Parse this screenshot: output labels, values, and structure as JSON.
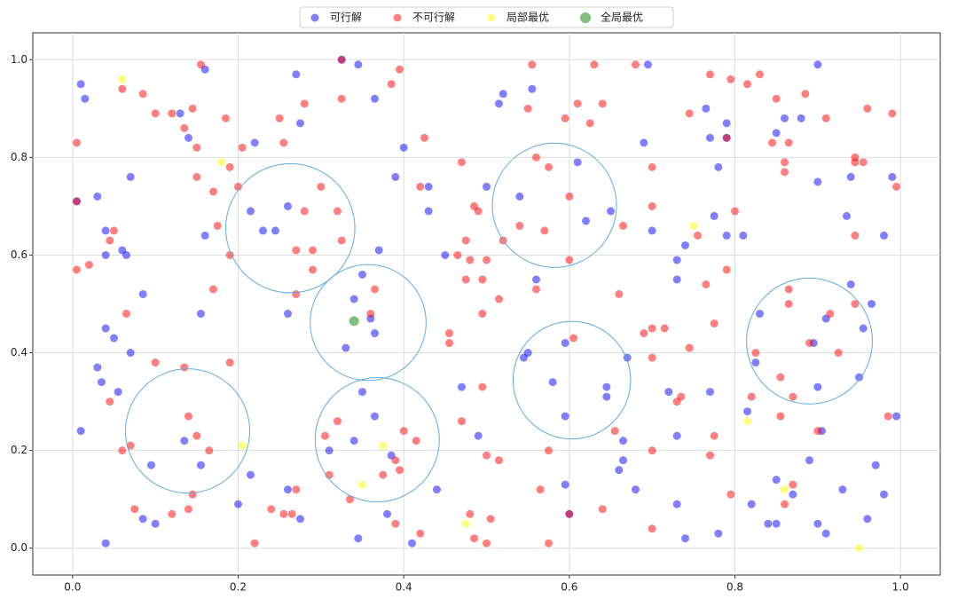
{
  "chart_data": {
    "type": "scatter",
    "xlim": [
      -0.048,
      1.048
    ],
    "ylim": [
      -0.055,
      1.055
    ],
    "xticks": [
      {
        "value": 0,
        "label": "0.0"
      },
      {
        "value": 0.2,
        "label": "0.2"
      },
      {
        "value": 0.4,
        "label": "0.4"
      },
      {
        "value": 0.6,
        "label": "0.6"
      },
      {
        "value": 0.8,
        "label": "0.8"
      },
      {
        "value": 1,
        "label": "1.0"
      }
    ],
    "yticks": [
      {
        "value": 0,
        "label": "0.0"
      },
      {
        "value": 0.2,
        "label": "0.2"
      },
      {
        "value": 0.4,
        "label": "0.4"
      },
      {
        "value": 0.6,
        "label": "0.6"
      },
      {
        "value": 0.8,
        "label": "0.8"
      },
      {
        "value": 1,
        "label": "1.0"
      }
    ],
    "grid": true,
    "legend": "upper center",
    "series": [
      {
        "name": "可行解",
        "color": "#0000ff",
        "x": [
          0.01,
          0.015,
          0.03,
          0.04,
          0.04,
          0.06,
          0.065,
          0.07,
          0.085,
          0.04,
          0.05,
          0.07,
          0.03,
          0.035,
          0.055,
          0.01,
          0.04,
          0.085,
          0.1,
          0.095,
          0.13,
          0.14,
          0.16,
          0.16,
          0.155,
          0.135,
          0.155,
          0.2,
          0.215,
          0.22,
          0.215,
          0.23,
          0.245,
          0.26,
          0.26,
          0.27,
          0.275,
          0.26,
          0.275,
          0.31,
          0.34,
          0.36,
          0.35,
          0.37,
          0.365,
          0.33,
          0.345,
          0.365,
          0.39,
          0.4,
          0.35,
          0.34,
          0.365,
          0.385,
          0.345,
          0.38,
          0.41,
          0.43,
          0.43,
          0.45,
          0.47,
          0.44,
          0.49,
          0.5,
          0.515,
          0.52,
          0.555,
          0.54,
          0.56,
          0.545,
          0.55,
          0.58,
          0.595,
          0.595,
          0.6,
          0.595,
          0.61,
          0.62,
          0.65,
          0.645,
          0.645,
          0.665,
          0.665,
          0.67,
          0.66,
          0.68,
          0.69,
          0.695,
          0.7,
          0.72,
          0.73,
          0.73,
          0.74,
          0.73,
          0.73,
          0.74,
          0.765,
          0.77,
          0.78,
          0.775,
          0.79,
          0.77,
          0.78,
          0.79,
          0.81,
          0.815,
          0.83,
          0.825,
          0.86,
          0.85,
          0.88,
          0.9,
          0.9,
          0.895,
          0.9,
          0.91,
          0.94,
          0.935,
          0.94,
          0.95,
          0.955,
          0.965,
          0.97,
          0.98,
          0.99,
          0.995,
          0.98,
          0.905,
          0.89,
          0.9,
          0.91,
          0.93,
          0.96,
          0.85,
          0.84,
          0.87,
          0.85,
          0.82,
          0.325,
          0.79,
          0.005
        ],
        "y": [
          0.95,
          0.92,
          0.72,
          0.65,
          0.6,
          0.61,
          0.6,
          0.76,
          0.52,
          0.45,
          0.43,
          0.4,
          0.37,
          0.34,
          0.32,
          0.24,
          0.01,
          0.06,
          0.05,
          0.17,
          0.89,
          0.84,
          0.98,
          0.64,
          0.48,
          0.22,
          0.17,
          0.09,
          0.15,
          0.83,
          0.69,
          0.65,
          0.65,
          0.7,
          0.48,
          0.97,
          0.87,
          0.12,
          0.06,
          0.2,
          0.51,
          0.47,
          0.56,
          0.61,
          0.44,
          0.41,
          0.99,
          0.92,
          0.76,
          0.82,
          0.32,
          0.22,
          0.27,
          0.19,
          0.02,
          0.07,
          0.01,
          0.74,
          0.69,
          0.6,
          0.33,
          0.12,
          0.23,
          0.74,
          0.91,
          0.93,
          0.94,
          0.72,
          0.55,
          0.39,
          0.4,
          0.34,
          0.42,
          0.27,
          0.07,
          0.13,
          0.79,
          0.67,
          0.69,
          0.33,
          0.31,
          0.22,
          0.18,
          0.39,
          0.16,
          0.12,
          0.83,
          0.99,
          0.65,
          0.32,
          0.59,
          0.55,
          0.62,
          0.23,
          0.09,
          0.02,
          0.9,
          0.84,
          0.78,
          0.68,
          0.64,
          0.32,
          0.03,
          0.87,
          0.64,
          0.28,
          0.48,
          0.38,
          0.88,
          0.85,
          0.88,
          0.99,
          0.75,
          0.42,
          0.33,
          0.47,
          0.76,
          0.68,
          0.54,
          0.35,
          0.45,
          0.5,
          0.17,
          0.11,
          0.76,
          0.27,
          0.64,
          0.24,
          0.18,
          0.05,
          0.03,
          0.12,
          0.06,
          0.05,
          0.05,
          0.11,
          0.14,
          0.09,
          1.0,
          0.84,
          0.71
        ]
      },
      {
        "name": "不可行解",
        "color": "#ff0000",
        "x": [
          0.005,
          0.005,
          0.02,
          0.045,
          0.05,
          0.06,
          0.085,
          0.1,
          0.12,
          0.135,
          0.145,
          0.15,
          0.15,
          0.155,
          0.17,
          0.175,
          0.185,
          0.19,
          0.2,
          0.205,
          0.17,
          0.19,
          0.19,
          0.065,
          0.06,
          0.07,
          0.045,
          0.1,
          0.135,
          0.14,
          0.15,
          0.165,
          0.12,
          0.14,
          0.145,
          0.075,
          0.22,
          0.24,
          0.255,
          0.265,
          0.27,
          0.25,
          0.255,
          0.28,
          0.3,
          0.325,
          0.32,
          0.28,
          0.27,
          0.29,
          0.29,
          0.27,
          0.325,
          0.305,
          0.32,
          0.31,
          0.335,
          0.365,
          0.36,
          0.385,
          0.395,
          0.42,
          0.425,
          0.39,
          0.395,
          0.4,
          0.415,
          0.375,
          0.39,
          0.42,
          0.455,
          0.455,
          0.465,
          0.47,
          0.475,
          0.475,
          0.48,
          0.485,
          0.49,
          0.495,
          0.5,
          0.495,
          0.495,
          0.47,
          0.48,
          0.485,
          0.5,
          0.5,
          0.515,
          0.505,
          0.515,
          0.52,
          0.54,
          0.55,
          0.555,
          0.56,
          0.575,
          0.56,
          0.57,
          0.595,
          0.6,
          0.6,
          0.605,
          0.61,
          0.625,
          0.64,
          0.63,
          0.575,
          0.565,
          0.575,
          0.6,
          0.64,
          0.655,
          0.66,
          0.665,
          0.68,
          0.69,
          0.7,
          0.7,
          0.7,
          0.7,
          0.7,
          0.7,
          0.715,
          0.73,
          0.735,
          0.745,
          0.745,
          0.755,
          0.765,
          0.77,
          0.775,
          0.77,
          0.775,
          0.79,
          0.795,
          0.795,
          0.8,
          0.815,
          0.82,
          0.825,
          0.83,
          0.845,
          0.85,
          0.855,
          0.855,
          0.86,
          0.86,
          0.865,
          0.865,
          0.865,
          0.87,
          0.87,
          0.86,
          0.885,
          0.89,
          0.9,
          0.91,
          0.915,
          0.925,
          0.945,
          0.945,
          0.945,
          0.945,
          0.955,
          0.96,
          0.99,
          0.995,
          0.985,
          0.325,
          0.79,
          0.005
        ],
        "y": [
          0.83,
          0.57,
          0.58,
          0.63,
          0.65,
          0.94,
          0.93,
          0.89,
          0.89,
          0.86,
          0.9,
          0.76,
          0.82,
          0.99,
          0.73,
          0.66,
          0.88,
          0.78,
          0.74,
          0.82,
          0.53,
          0.6,
          0.38,
          0.48,
          0.2,
          0.21,
          0.3,
          0.38,
          0.37,
          0.27,
          0.23,
          0.2,
          0.07,
          0.08,
          0.11,
          0.08,
          0.01,
          0.08,
          0.07,
          0.07,
          0.12,
          0.88,
          0.83,
          0.91,
          0.74,
          0.92,
          0.69,
          0.69,
          0.61,
          0.61,
          0.57,
          0.52,
          0.63,
          0.23,
          0.26,
          0.15,
          0.1,
          0.53,
          0.48,
          0.95,
          0.98,
          0.74,
          0.84,
          0.18,
          0.16,
          0.24,
          0.22,
          0.15,
          0.05,
          0.03,
          0.42,
          0.44,
          0.6,
          0.79,
          0.63,
          0.55,
          0.59,
          0.7,
          0.69,
          0.55,
          0.59,
          0.48,
          0.33,
          0.26,
          0.07,
          0.02,
          0.01,
          0.19,
          0.18,
          0.06,
          0.51,
          0.63,
          0.66,
          0.9,
          0.99,
          0.8,
          0.78,
          0.53,
          0.65,
          0.88,
          0.72,
          0.59,
          0.43,
          0.91,
          0.87,
          0.91,
          0.99,
          0.2,
          0.12,
          0.01,
          0.07,
          0.08,
          0.24,
          0.52,
          0.66,
          0.99,
          0.44,
          0.45,
          0.39,
          0.78,
          0.7,
          0.2,
          0.04,
          0.45,
          0.3,
          0.31,
          0.41,
          0.89,
          0.64,
          0.54,
          0.97,
          0.46,
          0.19,
          0.23,
          0.57,
          0.11,
          0.96,
          0.69,
          0.95,
          0.31,
          0.4,
          0.97,
          0.83,
          0.92,
          0.35,
          0.27,
          0.77,
          0.79,
          0.53,
          0.5,
          0.83,
          0.31,
          0.13,
          0.09,
          0.93,
          0.42,
          0.24,
          0.88,
          0.48,
          0.4,
          0.8,
          0.79,
          0.64,
          0.5,
          0.79,
          0.9,
          0.89,
          0.74,
          0.27,
          1.0,
          0.84,
          0.71
        ]
      },
      {
        "name": "局部最优",
        "color": "#ffff00",
        "x": [
          0.06,
          0.18,
          0.205,
          0.35,
          0.375,
          0.475,
          0.75,
          0.815,
          0.86,
          0.95
        ],
        "y": [
          0.96,
          0.79,
          0.21,
          0.13,
          0.21,
          0.05,
          0.66,
          0.26,
          0.12,
          0.0
        ]
      },
      {
        "name": "全局最优",
        "color": "#008000",
        "x": [
          0.34
        ],
        "y": [
          0.465
        ]
      }
    ],
    "circles": {
      "color": "#5dade2",
      "cx": [
        0.139,
        0.263,
        0.357,
        0.368,
        0.582,
        0.603,
        0.89
      ],
      "cy": [
        0.24,
        0.655,
        0.462,
        0.222,
        0.702,
        0.344,
        0.424
      ],
      "r": [
        0.075,
        0.078,
        0.07,
        0.075,
        0.075,
        0.071,
        0.076
      ]
    }
  }
}
